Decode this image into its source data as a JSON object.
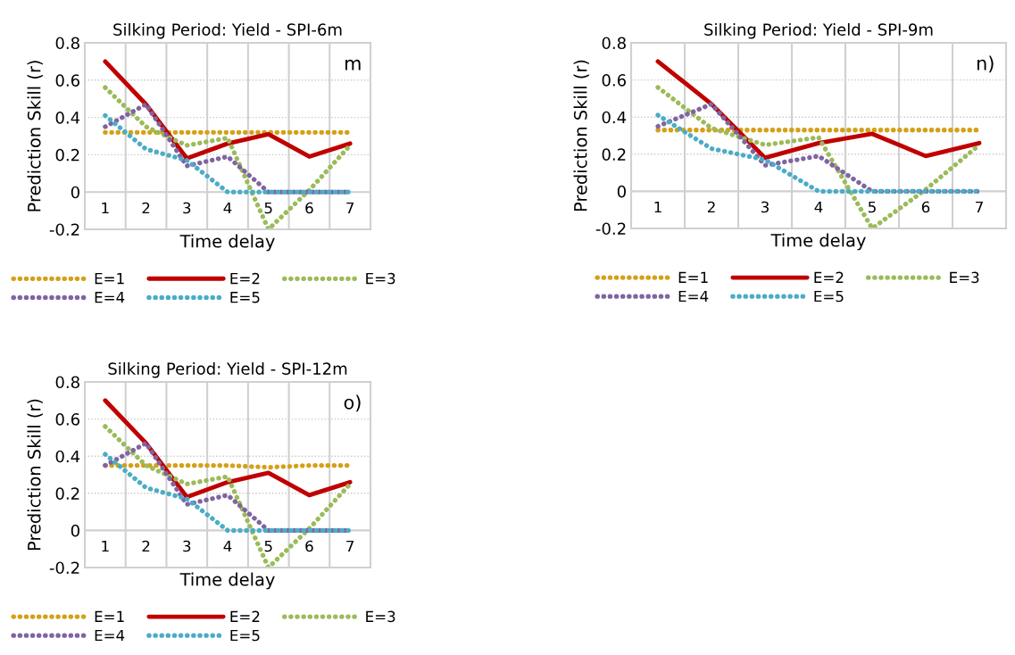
{
  "chart_data": [
    {
      "type": "line",
      "title": "Silking Period: Yield - SPI-6m",
      "xlabel": "Time delay",
      "ylabel": "Prediction Skill (r)",
      "annotations": [
        "m"
      ],
      "categories": [
        "1",
        "2",
        "3",
        "4",
        "5",
        "6",
        "7"
      ],
      "ylim": [
        -0.2,
        0.8
      ],
      "yticks": [
        -0.2,
        0,
        0.2,
        0.4,
        0.6,
        0.8
      ],
      "grid": true,
      "legend": "bottom",
      "series": [
        {
          "name": "E=1",
          "color": "#d4a017",
          "line_style": "dotted",
          "values": [
            0.32,
            0.32,
            0.32,
            0.32,
            0.32,
            0.32,
            0.32
          ]
        },
        {
          "name": "E=2",
          "color": "#c00000",
          "line_style": "solid",
          "values": [
            0.7,
            0.47,
            0.18,
            0.26,
            0.31,
            0.19,
            0.26
          ]
        },
        {
          "name": "E=3",
          "color": "#9bbb59",
          "line_style": "dotted",
          "values": [
            0.56,
            0.35,
            0.25,
            0.29,
            -0.2,
            0.01,
            0.25
          ]
        },
        {
          "name": "E=4",
          "color": "#8064a2",
          "line_style": "dotted",
          "values": [
            0.35,
            0.47,
            0.14,
            0.19,
            0.0,
            0.0,
            0.0
          ]
        },
        {
          "name": "E=5",
          "color": "#4bacc6",
          "line_style": "dotted",
          "values": [
            0.41,
            0.23,
            0.17,
            0.0,
            0.0,
            0.0,
            0.0
          ]
        }
      ]
    },
    {
      "type": "line",
      "title": "Silking Period: Yield - SPI-9m",
      "xlabel": "Time delay",
      "ylabel": "Prediction Skill (r)",
      "annotations": [
        "n)"
      ],
      "categories": [
        "1",
        "2",
        "3",
        "4",
        "5",
        "6",
        "7"
      ],
      "ylim": [
        -0.2,
        0.8
      ],
      "yticks": [
        -0.2,
        0,
        0.2,
        0.4,
        0.6,
        0.8
      ],
      "grid": true,
      "legend": "bottom",
      "series": [
        {
          "name": "E=1",
          "color": "#d4a017",
          "line_style": "dotted",
          "values": [
            0.33,
            0.33,
            0.33,
            0.33,
            0.33,
            0.33,
            0.33
          ]
        },
        {
          "name": "E=2",
          "color": "#c00000",
          "line_style": "solid",
          "values": [
            0.7,
            0.47,
            0.18,
            0.26,
            0.31,
            0.19,
            0.26
          ]
        },
        {
          "name": "E=3",
          "color": "#9bbb59",
          "line_style": "dotted",
          "values": [
            0.56,
            0.34,
            0.25,
            0.29,
            -0.2,
            0.01,
            0.25
          ]
        },
        {
          "name": "E=4",
          "color": "#8064a2",
          "line_style": "dotted",
          "values": [
            0.35,
            0.47,
            0.14,
            0.19,
            0.0,
            0.0,
            0.0
          ]
        },
        {
          "name": "E=5",
          "color": "#4bacc6",
          "line_style": "dotted",
          "values": [
            0.41,
            0.23,
            0.17,
            0.0,
            0.0,
            0.0,
            0.0
          ]
        }
      ]
    },
    {
      "type": "line",
      "title": "Silking Period: Yield - SPI-12m",
      "xlabel": "Time delay",
      "ylabel": "Prediction Skill (r)",
      "annotations": [
        "o)"
      ],
      "categories": [
        "1",
        "2",
        "3",
        "4",
        "5",
        "6",
        "7"
      ],
      "ylim": [
        -0.2,
        0.8
      ],
      "yticks": [
        -0.2,
        0,
        0.2,
        0.4,
        0.6,
        0.8
      ],
      "grid": true,
      "legend": "bottom",
      "series": [
        {
          "name": "E=1",
          "color": "#d4a017",
          "line_style": "dotted",
          "values": [
            0.35,
            0.35,
            0.35,
            0.35,
            0.34,
            0.35,
            0.35
          ]
        },
        {
          "name": "E=2",
          "color": "#c00000",
          "line_style": "solid",
          "values": [
            0.7,
            0.47,
            0.18,
            0.26,
            0.31,
            0.19,
            0.26
          ]
        },
        {
          "name": "E=3",
          "color": "#9bbb59",
          "line_style": "dotted",
          "values": [
            0.56,
            0.35,
            0.25,
            0.29,
            -0.2,
            0.01,
            0.25
          ]
        },
        {
          "name": "E=4",
          "color": "#8064a2",
          "line_style": "dotted",
          "values": [
            0.35,
            0.47,
            0.14,
            0.19,
            0.0,
            0.0,
            0.0
          ]
        },
        {
          "name": "E=5",
          "color": "#4bacc6",
          "line_style": "dotted",
          "values": [
            0.41,
            0.23,
            0.17,
            0.0,
            0.0,
            0.0,
            0.0
          ]
        }
      ]
    }
  ]
}
